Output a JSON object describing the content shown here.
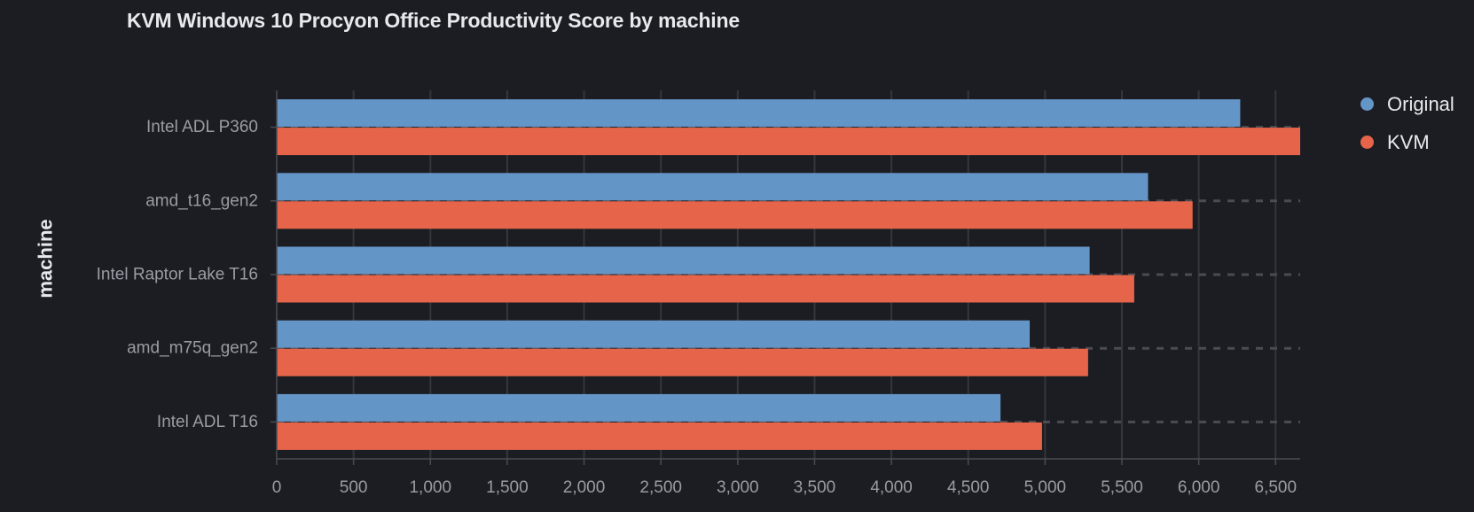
{
  "chart_data": {
    "type": "bar",
    "orientation": "horizontal",
    "title": "KVM Windows 10 Procyon Office Productivity Score by machine",
    "xlabel": "",
    "ylabel": "machine",
    "categories": [
      "Intel ADL P360",
      "amd_t16_gen2",
      "Intel Raptor Lake T16",
      "amd_m75q_gen2",
      "Intel ADL T16"
    ],
    "series": [
      {
        "name": "Original",
        "color": "#6495c7",
        "values": [
          6270,
          5670,
          5290,
          4900,
          4710
        ]
      },
      {
        "name": "KVM",
        "color": "#e6654a",
        "values": [
          6660,
          5960,
          5580,
          5280,
          4980
        ]
      }
    ],
    "xlim": [
      0,
      6660
    ],
    "xticks": [
      0,
      500,
      1000,
      1500,
      2000,
      2500,
      3000,
      3500,
      4000,
      4500,
      5000,
      5500,
      6000,
      6500
    ],
    "xtick_labels": [
      "0",
      "500",
      "1,000",
      "1,500",
      "2,000",
      "2,500",
      "3,000",
      "3,500",
      "4,000",
      "4,500",
      "5,000",
      "5,500",
      "6,000",
      "6,500"
    ],
    "grid": true,
    "legend_position": "top-right"
  }
}
